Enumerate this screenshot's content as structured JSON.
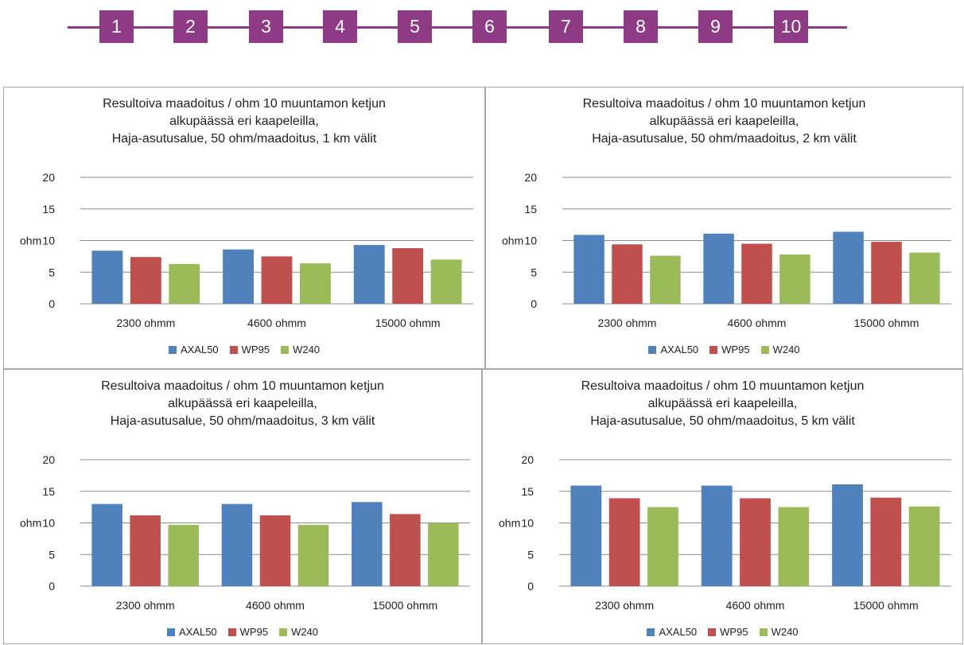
{
  "stepper": {
    "accent": "#8f3a84",
    "steps": [
      "1",
      "2",
      "3",
      "4",
      "5",
      "6",
      "7",
      "8",
      "9",
      "10"
    ]
  },
  "colors": {
    "AXAL50": "#4f81bd",
    "WP95": "#c0504d",
    "W240": "#9bbb59",
    "grid": "#8c8c8c"
  },
  "chart_data": [
    {
      "type": "bar",
      "title": [
        "Resultoiva maadoitus / ohm  10 muuntamon ketjun",
        "alkupäässä eri kaapeleilla,",
        "Haja-asutusalue, 50 ohm/maadoitus, 1 km välit"
      ],
      "xlabel": "",
      "ylabel": "ohm",
      "ylim": [
        0,
        20
      ],
      "yticks": [
        "0",
        "5",
        "10",
        "15",
        "20"
      ],
      "categories": [
        "2300 ohmm",
        "4600 ohmm",
        "15000 ohmm"
      ],
      "series": [
        {
          "name": "AXAL50",
          "values": [
            8.4,
            8.6,
            9.3
          ]
        },
        {
          "name": "WP95",
          "values": [
            7.4,
            7.5,
            8.8
          ]
        },
        {
          "name": "W240",
          "values": [
            6.3,
            6.4,
            7.0
          ]
        }
      ],
      "legend": "bottom",
      "grid": true
    },
    {
      "type": "bar",
      "title": [
        "Resultoiva maadoitus / ohm  10 muuntamon ketjun",
        "alkupäässä eri kaapeleilla,",
        "Haja-asutusalue, 50 ohm/maadoitus, 2 km välit"
      ],
      "xlabel": "",
      "ylabel": "ohm",
      "ylim": [
        0,
        20
      ],
      "yticks": [
        "0",
        "5",
        "10",
        "15",
        "20"
      ],
      "categories": [
        "2300 ohmm",
        "4600 ohmm",
        "15000 ohmm"
      ],
      "series": [
        {
          "name": "AXAL50",
          "values": [
            10.9,
            11.1,
            11.4
          ]
        },
        {
          "name": "WP95",
          "values": [
            9.4,
            9.5,
            9.8
          ]
        },
        {
          "name": "W240",
          "values": [
            7.6,
            7.8,
            8.1
          ]
        }
      ],
      "legend": "bottom",
      "grid": true
    },
    {
      "type": "bar",
      "title": [
        "Resultoiva maadoitus / ohm  10 muuntamon ketjun",
        "alkupäässä eri kaapeleilla,",
        "Haja-asutusalue, 50 ohm/maadoitus, 3 km välit"
      ],
      "xlabel": "",
      "ylabel": "ohm",
      "ylim": [
        0,
        20
      ],
      "yticks": [
        "0",
        "5",
        "10",
        "15",
        "20"
      ],
      "categories": [
        "2300 ohmm",
        "4600 ohmm",
        "15000 ohmm"
      ],
      "series": [
        {
          "name": "AXAL50",
          "values": [
            13.0,
            13.0,
            13.3
          ]
        },
        {
          "name": "WP95",
          "values": [
            11.2,
            11.2,
            11.4
          ]
        },
        {
          "name": "W240",
          "values": [
            9.7,
            9.7,
            10.0
          ]
        }
      ],
      "legend": "bottom",
      "grid": true
    },
    {
      "type": "bar",
      "title": [
        "Resultoiva maadoitus / ohm  10 muuntamon ketjun",
        "alkupäässä eri kaapeleilla,",
        "Haja-asutusalue, 50 ohm/maadoitus, 5 km välit"
      ],
      "xlabel": "",
      "ylabel": "ohm",
      "ylim": [
        0,
        20
      ],
      "yticks": [
        "0",
        "5",
        "10",
        "15",
        "20"
      ],
      "categories": [
        "2300 ohmm",
        "4600 ohmm",
        "15000 ohmm"
      ],
      "series": [
        {
          "name": "AXAL50",
          "values": [
            15.9,
            15.9,
            16.1
          ]
        },
        {
          "name": "WP95",
          "values": [
            13.9,
            13.9,
            14.0
          ]
        },
        {
          "name": "W240",
          "values": [
            12.5,
            12.5,
            12.6
          ]
        }
      ],
      "legend": "bottom",
      "grid": true
    }
  ]
}
